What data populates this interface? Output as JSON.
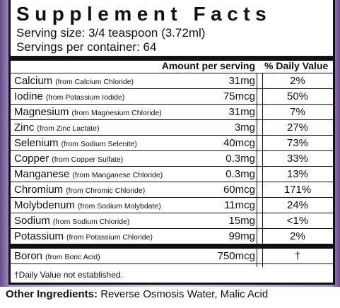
{
  "panel": {
    "title": "Supplement Facts",
    "serving_size": "Serving size: 3/4 teaspoon (3.72ml)",
    "servings_per_container": "Servings per container: 64",
    "header": {
      "amount": "Amount per serving",
      "dv": "% Daily Value"
    },
    "rows": [
      {
        "name": "Calcium",
        "source": "(from Calcium Chloride)",
        "amount": "31mg",
        "dv": "2%"
      },
      {
        "name": "Iodine",
        "source": "(from Potassium Iodide)",
        "amount": "75mcg",
        "dv": "50%"
      },
      {
        "name": "Magnesium",
        "source": "(from Magnesium Chloride)",
        "amount": "31mg",
        "dv": "7%"
      },
      {
        "name": "Zinc",
        "source": "(from Zinc Lactate)",
        "amount": "3mg",
        "dv": "27%"
      },
      {
        "name": "Selenium",
        "source": "(from Sodium Selenite)",
        "amount": "40mcg",
        "dv": "73%"
      },
      {
        "name": "Copper",
        "source": "(from Copper Sulfate)",
        "amount": "0.3mg",
        "dv": "33%"
      },
      {
        "name": "Manganese",
        "source": "(from Manganese Chloride)",
        "amount": "0.3mg",
        "dv": "13%"
      },
      {
        "name": "Chromium",
        "source": "(from Chromic Chloride)",
        "amount": "60mcg",
        "dv": "171%"
      },
      {
        "name": "Molybdenum",
        "source": "(from Sodium Molybdate)",
        "amount": "11mcg",
        "dv": "24%"
      },
      {
        "name": "Sodium",
        "source": "(from Sodium Chloride)",
        "amount": "15mg",
        "dv": "<1%"
      },
      {
        "name": "Potassium",
        "source": "(from Potassium Chloride)",
        "amount": "99mg",
        "dv": "2%"
      }
    ],
    "extra_rows": [
      {
        "name": "Boron",
        "source": "(from Boric Acid)",
        "amount": "750mcg",
        "dv": "†"
      }
    ],
    "footnote": "†Daily Value not established."
  },
  "other_ingredients": {
    "label": "Other Ingredients:",
    "text": "Reverse Osmosis Water, Malic Acid"
  }
}
